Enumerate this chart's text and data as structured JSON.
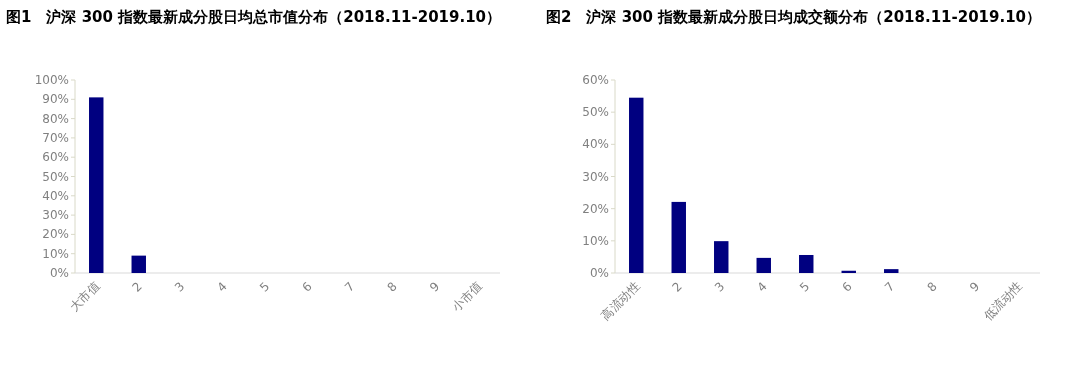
{
  "chart_data": [
    {
      "type": "bar",
      "title": "图1　沪深 300 指数最新成分股日均总市值分布（2018.11-2019.10）",
      "categories": [
        "大市值",
        "2",
        "3",
        "4",
        "5",
        "6",
        "7",
        "8",
        "9",
        "小市值"
      ],
      "values": [
        91,
        9,
        0,
        0,
        0,
        0,
        0,
        0,
        0,
        0
      ],
      "color": "#000080",
      "ylim": [
        0,
        100
      ],
      "yticks": [
        {
          "value": 0,
          "label": "0%"
        },
        {
          "value": 10,
          "label": "10%"
        },
        {
          "value": 20,
          "label": "20%"
        },
        {
          "value": 30,
          "label": "30%"
        },
        {
          "value": 40,
          "label": "40%"
        },
        {
          "value": 50,
          "label": "50%"
        },
        {
          "value": 60,
          "label": "60%"
        },
        {
          "value": 70,
          "label": "70%"
        },
        {
          "value": 80,
          "label": "80%"
        },
        {
          "value": 90,
          "label": "90%"
        },
        {
          "value": 100,
          "label": "100%"
        }
      ]
    },
    {
      "type": "bar",
      "title": "图2　沪深 300 指数最新成分股日均成交额分布（2018.11-2019.10）",
      "categories": [
        "高流动性",
        "2",
        "3",
        "4",
        "5",
        "6",
        "7",
        "8",
        "9",
        "低流动性"
      ],
      "values": [
        54.5,
        22.1,
        9.9,
        4.7,
        5.6,
        0.7,
        1.2,
        0,
        0,
        0
      ],
      "color": "#000080",
      "ylim": [
        0,
        60
      ],
      "yticks": [
        {
          "value": 0,
          "label": "0%"
        },
        {
          "value": 10,
          "label": "10%"
        },
        {
          "value": 20,
          "label": "20%"
        },
        {
          "value": 30,
          "label": "30%"
        },
        {
          "value": 40,
          "label": "40%"
        },
        {
          "value": 50,
          "label": "50%"
        },
        {
          "value": 60,
          "label": "60%"
        }
      ]
    }
  ]
}
